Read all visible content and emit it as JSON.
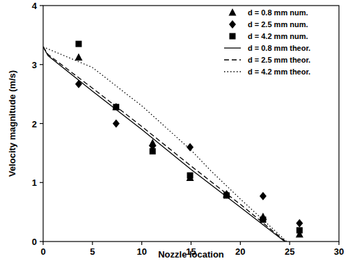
{
  "chart_data": {
    "type": "scatter",
    "x_label": "Nozzle location",
    "y_label": "Velocity magnitude (m/s)",
    "xlim": [
      0,
      30
    ],
    "ylim": [
      0,
      4
    ],
    "xticks": [
      0,
      5,
      10,
      15,
      20,
      25,
      30
    ],
    "yticks": [
      0,
      1,
      2,
      3,
      4
    ],
    "grid": false,
    "legend": "top-right",
    "series": [
      {
        "name": "d = 0.8 mm num.",
        "type": "scatter",
        "marker": "triangle",
        "color": "#000000",
        "x": [
          3.6,
          7.4,
          11.1,
          14.9,
          18.6,
          22.3,
          26.0
        ],
        "values": [
          3.12,
          2.28,
          1.67,
          1.08,
          0.8,
          0.42,
          0.12
        ]
      },
      {
        "name": "d = 2.5 mm num.",
        "type": "scatter",
        "marker": "diamond",
        "color": "#000000",
        "x": [
          3.6,
          7.4,
          11.1,
          14.9,
          18.6,
          22.3,
          26.0
        ],
        "values": [
          2.67,
          2.0,
          1.62,
          1.6,
          0.8,
          0.77,
          0.31
        ]
      },
      {
        "name": "d = 4.2 mm num.",
        "type": "scatter",
        "marker": "square",
        "color": "#000000",
        "x": [
          3.6,
          7.4,
          11.1,
          14.9,
          18.6,
          22.3,
          26.0
        ],
        "values": [
          3.35,
          2.28,
          1.53,
          1.12,
          0.78,
          0.37,
          0.19
        ]
      },
      {
        "name": "d = 0.8 mm theor.",
        "type": "line",
        "line_style": "solid",
        "color": "#000000",
        "x": [
          0,
          0.5,
          5,
          10,
          15,
          20,
          24.5
        ],
        "values": [
          3.3,
          3.15,
          2.55,
          1.9,
          1.22,
          0.58,
          0
        ]
      },
      {
        "name": "d = 2.5 mm theor.",
        "type": "line",
        "line_style": "dashed",
        "color": "#000000",
        "x": [
          0,
          0.5,
          5,
          10,
          15,
          20,
          24.6
        ],
        "values": [
          3.3,
          3.17,
          2.6,
          1.95,
          1.28,
          0.63,
          0
        ]
      },
      {
        "name": "d = 4.2 mm theor.",
        "type": "line",
        "line_style": "dotted",
        "color": "#000000",
        "x": [
          0,
          5,
          10,
          15,
          17,
          20,
          24.7
        ],
        "values": [
          3.3,
          2.95,
          2.3,
          1.55,
          1.2,
          0.72,
          0
        ]
      }
    ]
  }
}
